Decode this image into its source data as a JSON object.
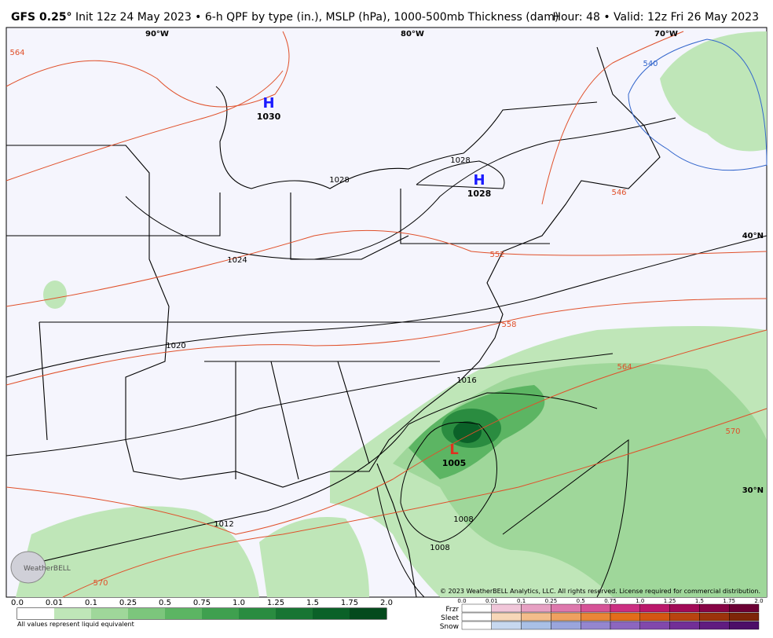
{
  "header": {
    "model": "GFS 0.25°",
    "title": "Init 12z 24 May 2023 • 6-h QPF by type (in.), MSLP (hPa), 1000-500mb Thickness (dam)",
    "valid": "Hour: 48 • Valid: 12z Fri 26 May 2023"
  },
  "map": {
    "lon_labels": [
      "90°W",
      "80°W",
      "70°W"
    ],
    "lat_labels": [
      "40°N",
      "30°N"
    ],
    "highs": [
      {
        "symbol": "H",
        "pressure": "1030"
      },
      {
        "symbol": "H",
        "pressure": "1028"
      }
    ],
    "lows": [
      {
        "symbol": "L",
        "pressure": "1005"
      }
    ],
    "isobar_labels": [
      "1028",
      "1028",
      "1024",
      "1020",
      "1016",
      "1012",
      "1008",
      "1008"
    ],
    "thickness_labels": [
      "564",
      "540",
      "546",
      "552",
      "558",
      "564",
      "570",
      "570"
    ],
    "copyright": "© 2023 WeatherBELL Analytics, LLC. All rights reserved. License required for commercial distribution.",
    "logo": "WeatherBELL"
  },
  "legend": {
    "qpf_ticks": [
      {
        "value": 0,
        "label": "0.0"
      },
      0.01,
      0.1,
      0.25,
      0.5,
      0.75,
      {
        "value": 1,
        "label": "1.0"
      },
      1.25,
      1.5,
      1.75,
      {
        "value": 2,
        "label": "2.0"
      }
    ],
    "qpf_colors": [
      "#ffffff",
      "#bfe6b8",
      "#9fd79a",
      "#7cc67c",
      "#5cb563",
      "#3fa04f",
      "#2a8c40",
      "#187533",
      "#0b6128",
      "#044a1d"
    ],
    "note": "All values represent liquid equivalent",
    "ptype_ticks": [
      {
        "value": 0,
        "label": "0.0"
      },
      0.01,
      0.1,
      0.25,
      0.5,
      0.75,
      {
        "value": 1,
        "label": "1.0"
      },
      1.25,
      1.5,
      1.75,
      {
        "value": 2,
        "label": "2.0"
      }
    ],
    "ptype_rows": [
      {
        "name": "Frzr",
        "colors": [
          "#ffffff",
          "#f1c6d9",
          "#e7a0c3",
          "#de78ad",
          "#d65297",
          "#cc2f82",
          "#bb176b",
          "#a20a57",
          "#870445",
          "#6c0034"
        ]
      },
      {
        "name": "Sleet",
        "colors": [
          "#ffffff",
          "#f7d7b8",
          "#f3bd8b",
          "#efa160",
          "#ea8638",
          "#e36d1a",
          "#d45612",
          "#b9430f",
          "#9c330b",
          "#7e2508"
        ]
      },
      {
        "name": "Snow",
        "colors": [
          "#ffffff",
          "#c7d8ef",
          "#a9c0e6",
          "#9aa5dc",
          "#9486cf",
          "#8c66bf",
          "#8148ac",
          "#722f97",
          "#601c80",
          "#4c0e68"
        ]
      }
    ]
  }
}
